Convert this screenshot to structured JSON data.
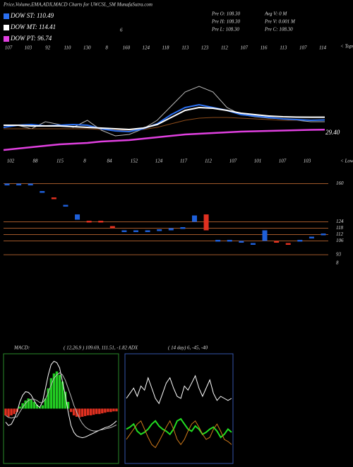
{
  "chart_data": [
    {
      "type": "line",
      "title": "Price,Volume,EMA,ADX,MACD Charts for UWCSL_SM MunafaSutra.com",
      "info": [
        "Pre O: 108.30",
        "Avg V: 0  M",
        "Pre H: 108.30",
        "Pre V: 0.001 M",
        "Pre L: 108.30",
        "Pre C: 108.30"
      ],
      "top_note": "6",
      "tops": [
        107,
        103,
        92,
        110,
        130,
        8,
        160,
        124,
        118,
        113,
        123,
        112,
        107,
        116,
        113,
        107,
        114
      ],
      "tops_label": "< Tops",
      "lows": [
        102,
        88,
        115,
        8,
        84,
        152,
        124,
        117,
        112,
        107,
        101,
        107,
        103
      ],
      "lows_label": "< Lows",
      "end_label": "29.40",
      "ylim": [
        50,
        220
      ],
      "series": [
        {
          "color": "#b8b8b8",
          "values": [
            100,
            103,
            98,
            108,
            104,
            100,
            110,
            96,
            88,
            90,
            98,
            110,
            130,
            150,
            158,
            150,
            128,
            118,
            115,
            113,
            112,
            110,
            108,
            108
          ]
        },
        {
          "color": "#8a4a1a",
          "values": [
            98,
            98,
            98,
            98,
            98,
            98,
            98,
            97,
            96,
            96,
            97,
            100,
            105,
            110,
            113,
            114,
            114,
            113,
            112,
            111,
            110,
            110,
            110,
            110
          ]
        },
        {
          "name": "DOW ST: 110.49",
          "color": "#2a6ff0",
          "values": [
            100,
            103,
            104,
            102,
            103,
            104,
            103,
            98,
            95,
            94,
            98,
            105,
            118,
            128,
            132,
            128,
            124,
            118,
            116,
            114,
            112,
            111,
            110,
            110.49
          ]
        },
        {
          "name": "DOW MT: 114.41",
          "color": "#ffffff",
          "values": [
            103,
            103,
            102,
            102,
            102,
            101,
            100,
            99,
            98,
            97,
            99,
            104,
            114,
            124,
            128,
            127,
            124,
            120,
            118,
            116,
            115,
            114.5,
            114.4,
            114.41
          ]
        },
        {
          "name": "DOW PT: 96.74",
          "color": "#e040e0",
          "values": [
            68,
            70,
            72,
            74,
            76,
            77,
            78,
            80,
            81,
            82,
            84,
            86,
            88,
            90,
            91,
            92,
            93,
            94,
            94.5,
            95,
            95.5,
            96,
            96.5,
            96.74
          ]
        }
      ]
    },
    {
      "type": "candles",
      "ylim": [
        83,
        163
      ],
      "yticks": [
        160,
        124,
        118,
        112,
        106,
        93
      ],
      "bottom_label": "8",
      "open": [
        160,
        160,
        160,
        153,
        147,
        140,
        131,
        125,
        125,
        120,
        116,
        116,
        116,
        117,
        118,
        119,
        130,
        131,
        107,
        107,
        106,
        104,
        116,
        106,
        104,
        107,
        110,
        113
      ],
      "close": [
        160,
        160,
        160,
        153,
        147,
        140,
        126,
        125,
        125,
        118,
        116,
        116,
        115,
        116,
        116,
        118,
        124,
        116,
        107,
        107,
        106,
        104,
        106,
        106,
        104,
        107,
        110,
        113
      ],
      "colors": [
        "#1e5fd8",
        "#1e5fd8",
        "#1e5fd8",
        "#1e5fd8",
        "#e03020",
        "#1e5fd8",
        "#1e5fd8",
        "#e03020",
        "#e03020",
        "#e03020",
        "#1e5fd8",
        "#1e5fd8",
        "#1e5fd8",
        "#1e5fd8",
        "#1e5fd8",
        "#1e5fd8",
        "#1e5fd8",
        "#e03020",
        "#1e5fd8",
        "#1e5fd8",
        "#1e5fd8",
        "#1e5fd8",
        "#1e5fd8",
        "#e03020",
        "#e03020",
        "#1e5fd8",
        "#1e5fd8",
        "#1e5fd8"
      ]
    },
    {
      "type": "macd",
      "label": "MACD:",
      "params": "( 12,26,9 ) 109.69, 111.51, -1.82 ADX",
      "ylim": [
        -8,
        8
      ],
      "hist": [
        -1,
        -1.2,
        -1,
        -0.8,
        -0.5,
        0.3,
        0.8,
        1.2,
        1.5,
        1.3,
        1,
        0.6,
        0.2,
        0.5,
        1.5,
        3,
        4.5,
        5.2,
        5.5,
        5,
        4,
        2.5,
        1,
        -0.5,
        -1,
        -1.2,
        -1.3,
        -1.2,
        -1.1,
        -1,
        -1,
        -0.9,
        -0.8,
        -0.8,
        -0.7,
        -0.6,
        -0.5,
        -0.5,
        -0.4,
        -0.4
      ],
      "series": [
        {
          "color": "#ffffff",
          "values": [
            -2,
            -2.5,
            -2.3,
            -1.5,
            -0.5,
            1,
            2,
            2.5,
            2.4,
            2,
            1.2,
            0.5,
            0.2,
            1,
            3,
            5,
            6.5,
            7,
            6.8,
            6,
            4,
            2,
            -0.5,
            -2.5,
            -3.5,
            -4,
            -4.2,
            -4.3,
            -4.2,
            -4,
            -3.8,
            -3.6,
            -3.4,
            -3.2,
            -3,
            -2.8,
            -2.7,
            -2.5,
            -2.2,
            -1.82
          ]
        },
        {
          "color": "#bbbbbb",
          "values": [
            -1,
            -1.3,
            -1.4,
            -1.3,
            -1.2,
            -0.5,
            0.2,
            0.8,
            1.2,
            1.4,
            1.4,
            1.2,
            0.9,
            0.9,
            1.4,
            2.4,
            3.5,
            4.5,
            5,
            5.3,
            5,
            4.2,
            3,
            1.8,
            0.5,
            -0.5,
            -1.5,
            -2.2,
            -2.7,
            -3,
            -3.2,
            -3.3,
            -3.3,
            -3.2,
            -3.1,
            -3,
            -2.9,
            -2.8,
            -2.6,
            -2.4
          ]
        }
      ]
    },
    {
      "type": "adx",
      "label": "( 14 day) 6, -45, -40",
      "ylim": [
        0,
        100
      ],
      "series": [
        {
          "color": "#ffffff",
          "values": [
            60,
            65,
            70,
            62,
            72,
            68,
            80,
            70,
            60,
            55,
            65,
            75,
            80,
            70,
            62,
            60,
            72,
            68,
            75,
            82,
            70,
            62,
            70,
            78,
            65,
            58,
            62,
            60,
            58,
            60
          ]
        },
        {
          "color": "#22dd22",
          "values": [
            30,
            32,
            35,
            28,
            25,
            27,
            30,
            35,
            38,
            33,
            30,
            28,
            25,
            30,
            38,
            40,
            35,
            30,
            28,
            33,
            30,
            25,
            27,
            30,
            32,
            28,
            22,
            25,
            30,
            27
          ]
        },
        {
          "color": "#d07a1a",
          "values": [
            20,
            25,
            30,
            35,
            38,
            30,
            22,
            15,
            12,
            18,
            25,
            32,
            38,
            30,
            20,
            15,
            20,
            28,
            35,
            38,
            32,
            25,
            20,
            22,
            30,
            35,
            28,
            20,
            18,
            15
          ]
        }
      ]
    }
  ]
}
